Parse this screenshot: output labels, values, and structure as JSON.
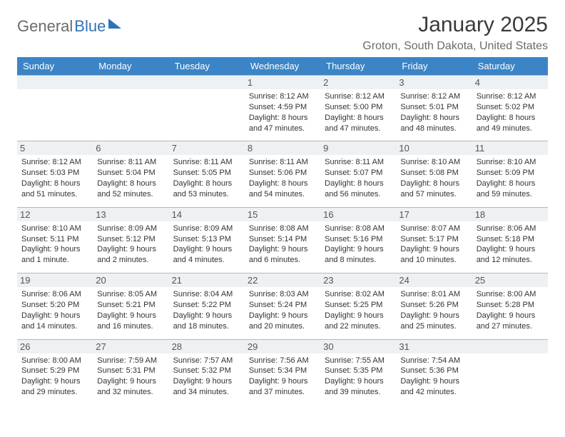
{
  "brand": {
    "part1": "General",
    "part2": "Blue"
  },
  "title": "January 2025",
  "location": "Groton, South Dakota, United States",
  "colors": {
    "header_bg": "#3b85c6",
    "header_fg": "#ffffff",
    "daynum_bg": "#eef1f4",
    "border": "#b8b8b8",
    "brand_gray": "#6b6b6b",
    "brand_blue": "#2f72b8"
  },
  "weekdays": [
    "Sunday",
    "Monday",
    "Tuesday",
    "Wednesday",
    "Thursday",
    "Friday",
    "Saturday"
  ],
  "weeks": [
    [
      {
        "n": "",
        "sr": "",
        "ss": "",
        "dl1": "",
        "dl2": ""
      },
      {
        "n": "",
        "sr": "",
        "ss": "",
        "dl1": "",
        "dl2": ""
      },
      {
        "n": "",
        "sr": "",
        "ss": "",
        "dl1": "",
        "dl2": ""
      },
      {
        "n": "1",
        "sr": "Sunrise: 8:12 AM",
        "ss": "Sunset: 4:59 PM",
        "dl1": "Daylight: 8 hours",
        "dl2": "and 47 minutes."
      },
      {
        "n": "2",
        "sr": "Sunrise: 8:12 AM",
        "ss": "Sunset: 5:00 PM",
        "dl1": "Daylight: 8 hours",
        "dl2": "and 47 minutes."
      },
      {
        "n": "3",
        "sr": "Sunrise: 8:12 AM",
        "ss": "Sunset: 5:01 PM",
        "dl1": "Daylight: 8 hours",
        "dl2": "and 48 minutes."
      },
      {
        "n": "4",
        "sr": "Sunrise: 8:12 AM",
        "ss": "Sunset: 5:02 PM",
        "dl1": "Daylight: 8 hours",
        "dl2": "and 49 minutes."
      }
    ],
    [
      {
        "n": "5",
        "sr": "Sunrise: 8:12 AM",
        "ss": "Sunset: 5:03 PM",
        "dl1": "Daylight: 8 hours",
        "dl2": "and 51 minutes."
      },
      {
        "n": "6",
        "sr": "Sunrise: 8:11 AM",
        "ss": "Sunset: 5:04 PM",
        "dl1": "Daylight: 8 hours",
        "dl2": "and 52 minutes."
      },
      {
        "n": "7",
        "sr": "Sunrise: 8:11 AM",
        "ss": "Sunset: 5:05 PM",
        "dl1": "Daylight: 8 hours",
        "dl2": "and 53 minutes."
      },
      {
        "n": "8",
        "sr": "Sunrise: 8:11 AM",
        "ss": "Sunset: 5:06 PM",
        "dl1": "Daylight: 8 hours",
        "dl2": "and 54 minutes."
      },
      {
        "n": "9",
        "sr": "Sunrise: 8:11 AM",
        "ss": "Sunset: 5:07 PM",
        "dl1": "Daylight: 8 hours",
        "dl2": "and 56 minutes."
      },
      {
        "n": "10",
        "sr": "Sunrise: 8:10 AM",
        "ss": "Sunset: 5:08 PM",
        "dl1": "Daylight: 8 hours",
        "dl2": "and 57 minutes."
      },
      {
        "n": "11",
        "sr": "Sunrise: 8:10 AM",
        "ss": "Sunset: 5:09 PM",
        "dl1": "Daylight: 8 hours",
        "dl2": "and 59 minutes."
      }
    ],
    [
      {
        "n": "12",
        "sr": "Sunrise: 8:10 AM",
        "ss": "Sunset: 5:11 PM",
        "dl1": "Daylight: 9 hours",
        "dl2": "and 1 minute."
      },
      {
        "n": "13",
        "sr": "Sunrise: 8:09 AM",
        "ss": "Sunset: 5:12 PM",
        "dl1": "Daylight: 9 hours",
        "dl2": "and 2 minutes."
      },
      {
        "n": "14",
        "sr": "Sunrise: 8:09 AM",
        "ss": "Sunset: 5:13 PM",
        "dl1": "Daylight: 9 hours",
        "dl2": "and 4 minutes."
      },
      {
        "n": "15",
        "sr": "Sunrise: 8:08 AM",
        "ss": "Sunset: 5:14 PM",
        "dl1": "Daylight: 9 hours",
        "dl2": "and 6 minutes."
      },
      {
        "n": "16",
        "sr": "Sunrise: 8:08 AM",
        "ss": "Sunset: 5:16 PM",
        "dl1": "Daylight: 9 hours",
        "dl2": "and 8 minutes."
      },
      {
        "n": "17",
        "sr": "Sunrise: 8:07 AM",
        "ss": "Sunset: 5:17 PM",
        "dl1": "Daylight: 9 hours",
        "dl2": "and 10 minutes."
      },
      {
        "n": "18",
        "sr": "Sunrise: 8:06 AM",
        "ss": "Sunset: 5:18 PM",
        "dl1": "Daylight: 9 hours",
        "dl2": "and 12 minutes."
      }
    ],
    [
      {
        "n": "19",
        "sr": "Sunrise: 8:06 AM",
        "ss": "Sunset: 5:20 PM",
        "dl1": "Daylight: 9 hours",
        "dl2": "and 14 minutes."
      },
      {
        "n": "20",
        "sr": "Sunrise: 8:05 AM",
        "ss": "Sunset: 5:21 PM",
        "dl1": "Daylight: 9 hours",
        "dl2": "and 16 minutes."
      },
      {
        "n": "21",
        "sr": "Sunrise: 8:04 AM",
        "ss": "Sunset: 5:22 PM",
        "dl1": "Daylight: 9 hours",
        "dl2": "and 18 minutes."
      },
      {
        "n": "22",
        "sr": "Sunrise: 8:03 AM",
        "ss": "Sunset: 5:24 PM",
        "dl1": "Daylight: 9 hours",
        "dl2": "and 20 minutes."
      },
      {
        "n": "23",
        "sr": "Sunrise: 8:02 AM",
        "ss": "Sunset: 5:25 PM",
        "dl1": "Daylight: 9 hours",
        "dl2": "and 22 minutes."
      },
      {
        "n": "24",
        "sr": "Sunrise: 8:01 AM",
        "ss": "Sunset: 5:26 PM",
        "dl1": "Daylight: 9 hours",
        "dl2": "and 25 minutes."
      },
      {
        "n": "25",
        "sr": "Sunrise: 8:00 AM",
        "ss": "Sunset: 5:28 PM",
        "dl1": "Daylight: 9 hours",
        "dl2": "and 27 minutes."
      }
    ],
    [
      {
        "n": "26",
        "sr": "Sunrise: 8:00 AM",
        "ss": "Sunset: 5:29 PM",
        "dl1": "Daylight: 9 hours",
        "dl2": "and 29 minutes."
      },
      {
        "n": "27",
        "sr": "Sunrise: 7:59 AM",
        "ss": "Sunset: 5:31 PM",
        "dl1": "Daylight: 9 hours",
        "dl2": "and 32 minutes."
      },
      {
        "n": "28",
        "sr": "Sunrise: 7:57 AM",
        "ss": "Sunset: 5:32 PM",
        "dl1": "Daylight: 9 hours",
        "dl2": "and 34 minutes."
      },
      {
        "n": "29",
        "sr": "Sunrise: 7:56 AM",
        "ss": "Sunset: 5:34 PM",
        "dl1": "Daylight: 9 hours",
        "dl2": "and 37 minutes."
      },
      {
        "n": "30",
        "sr": "Sunrise: 7:55 AM",
        "ss": "Sunset: 5:35 PM",
        "dl1": "Daylight: 9 hours",
        "dl2": "and 39 minutes."
      },
      {
        "n": "31",
        "sr": "Sunrise: 7:54 AM",
        "ss": "Sunset: 5:36 PM",
        "dl1": "Daylight: 9 hours",
        "dl2": "and 42 minutes."
      },
      {
        "n": "",
        "sr": "",
        "ss": "",
        "dl1": "",
        "dl2": ""
      }
    ]
  ]
}
